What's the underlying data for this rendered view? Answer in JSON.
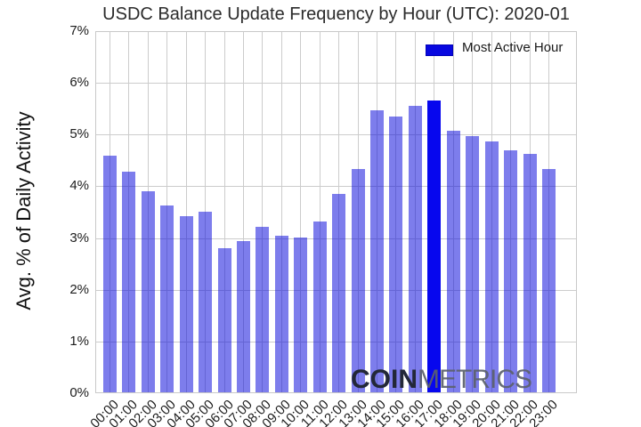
{
  "title": "USDC Balance Update Frequency by Hour (UTC): 2020-01",
  "y_axis_label": "Avg. % of Daily Activity",
  "legend": {
    "label": "Most Active Hour",
    "swatch_color": "#0808e0"
  },
  "watermark": {
    "part1": "COIN",
    "part2": "METRICS"
  },
  "chart_data": {
    "type": "bar",
    "title": "USDC Balance Update Frequency by Hour (UTC): 2020-01",
    "xlabel": "",
    "ylabel": "Avg. % of Daily Activity",
    "categories": [
      "00:00",
      "01:00",
      "02:00",
      "03:00",
      "04:00",
      "05:00",
      "06:00",
      "07:00",
      "08:00",
      "09:00",
      "10:00",
      "11:00",
      "12:00",
      "13:00",
      "14:00",
      "15:00",
      "16:00",
      "17:00",
      "18:00",
      "19:00",
      "20:00",
      "21:00",
      "22:00",
      "23:00"
    ],
    "values": [
      4.58,
      4.26,
      3.89,
      3.62,
      3.4,
      3.5,
      2.79,
      2.93,
      3.2,
      3.03,
      3.0,
      3.3,
      3.84,
      4.32,
      5.46,
      5.34,
      5.54,
      5.64,
      5.06,
      4.95,
      4.85,
      4.67,
      4.61,
      4.32
    ],
    "most_active_index": 17,
    "most_active_hour": "17:00",
    "ylim": [
      0,
      7
    ],
    "ytick_labels": [
      "0%",
      "1%",
      "2%",
      "3%",
      "4%",
      "5%",
      "6%",
      "7%"
    ],
    "grid": true,
    "legend_position": "upper right",
    "bar_color": "rgba(10,10,220,0.53)",
    "bar_color_flat": "#7b7bea",
    "highlight_color": "#0707ee",
    "gridline_color": "#cccccc"
  }
}
